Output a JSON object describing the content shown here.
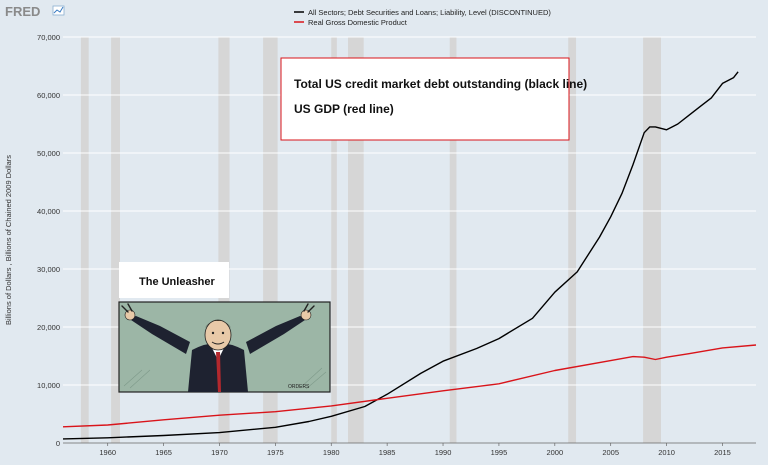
{
  "logo": {
    "text": "FRED"
  },
  "chart_data": {
    "type": "line",
    "title": "",
    "xlabel": "",
    "ylabel": "Billions of Dollars , Billions of Chained 2009 Dollars",
    "xlim": [
      1956.0,
      2018.0
    ],
    "ylim": [
      0,
      70000
    ],
    "xticks": [
      "1960",
      "1965",
      "1970",
      "1975",
      "1980",
      "1985",
      "1990",
      "1995",
      "2000",
      "2005",
      "2010",
      "2015"
    ],
    "yticks": [
      "0",
      "10,000",
      "20,000",
      "30,000",
      "40,000",
      "50,000",
      "60,000",
      "70,000"
    ],
    "grid": true,
    "legend_position": "top-center",
    "recessions": [
      [
        1957.6,
        1958.3
      ],
      [
        1960.3,
        1961.1
      ],
      [
        1969.9,
        1970.9
      ],
      [
        1973.9,
        1975.2
      ],
      [
        1980.0,
        1980.5
      ],
      [
        1981.5,
        1982.9
      ],
      [
        1990.6,
        1991.2
      ],
      [
        2001.2,
        2001.9
      ],
      [
        2007.9,
        2009.5
      ]
    ],
    "series": [
      {
        "name": "All Sectors; Debt Securities and Loans; Liability, Level (DISCONTINUED)",
        "color": "#000000",
        "x": [
          1956,
          1960,
          1965,
          1970,
          1975,
          1978,
          1980,
          1983,
          1985,
          1988,
          1990,
          1993,
          1995,
          1998,
          2000,
          2002,
          2004,
          2005,
          2006,
          2007,
          2008,
          2008.5,
          2009,
          2010,
          2011,
          2012,
          2013,
          2014,
          2015,
          2016,
          2016.4
        ],
        "y": [
          700,
          900,
          1300,
          1800,
          2700,
          3700,
          4600,
          6300,
          8400,
          12000,
          14100,
          16300,
          18000,
          21500,
          26000,
          29500,
          35500,
          39000,
          43000,
          48000,
          53500,
          54500,
          54500,
          54000,
          55000,
          56500,
          58000,
          59500,
          62000,
          63000,
          64000
        ]
      },
      {
        "name": "Real Gross Domestic Product",
        "color": "#d9141a",
        "x": [
          1956,
          1960,
          1965,
          1970,
          1975,
          1980,
          1985,
          1990,
          1995,
          2000,
          2005,
          2007,
          2008,
          2009,
          2010,
          2012,
          2015,
          2018
        ],
        "y": [
          2800,
          3100,
          4000,
          4800,
          5400,
          6400,
          7700,
          9000,
          10200,
          12500,
          14200,
          14900,
          14800,
          14400,
          14800,
          15400,
          16400,
          16900
        ]
      }
    ]
  },
  "annotation": {
    "line1": "Total US credit market debt outstanding (black line)",
    "line2": "US GDP (red line)"
  },
  "cartoon": {
    "caption": "The Unleasher",
    "signature": "ORDERS"
  }
}
